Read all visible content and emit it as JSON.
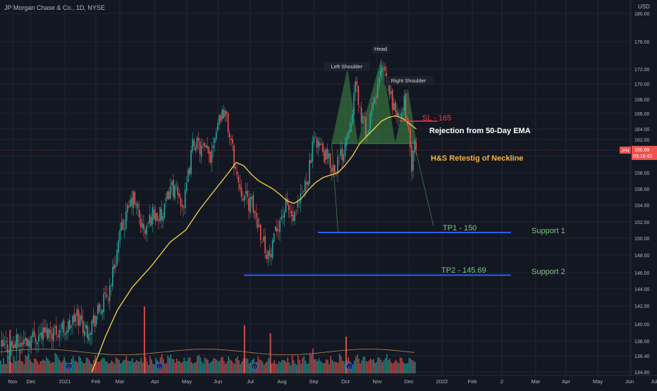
{
  "header": {
    "symbol_title": "JP Morgan Chase & Co., 1D, NYSE",
    "currency": "USD"
  },
  "colors": {
    "background": "#131722",
    "up_candle": "#26a69a",
    "down_candle": "#ef5350",
    "ema_line": "#f5d547",
    "neckline_fill": "#4caf50",
    "support_line": "#2962ff",
    "sl_line": "#f23645",
    "annotation_green": "#7cc47f",
    "annotation_orange": "#f5b63a"
  },
  "icons": [
    "dividend-icon"
  ],
  "chart_data": {
    "type": "candlestick",
    "y_axis": {
      "range": [
        134.5,
        181.2
      ],
      "ticks": [
        "134.80",
        "136.40",
        "138.00",
        "140.00",
        "142.00",
        "144.00",
        "146.00",
        "148.00",
        "150.00",
        "152.00",
        "154.00",
        "156.00",
        "158.00",
        "160.00",
        "162.00",
        "164.00",
        "166.00",
        "168.00",
        "170.00",
        "172.00",
        "176.00",
        "180.00"
      ]
    },
    "x_axis": {
      "labels": [
        "Nov",
        "Dec",
        "2021",
        "Feb",
        "Mar",
        "Apr",
        "May",
        "Jun",
        "Jul",
        "Aug",
        "Sep",
        "Oct",
        "Nov",
        "Dec",
        "2022",
        "Feb",
        "2",
        "Mar",
        "Apr",
        "May",
        "Jun",
        "Jul"
      ]
    },
    "last_price": {
      "ticker": "JPM",
      "price": 160.69,
      "countdown": "05:16:42"
    },
    "price_path": [
      {
        "date": "2020-11-02",
        "close": 137.2
      },
      {
        "date": "2020-11-20",
        "close": 137.8
      },
      {
        "date": "2020-12-04",
        "close": 138.6
      },
      {
        "date": "2020-12-18",
        "close": 139.2
      },
      {
        "date": "2021-01-04",
        "close": 139.6
      },
      {
        "date": "2021-01-13",
        "close": 141.0
      },
      {
        "date": "2021-01-22",
        "close": 139.2
      },
      {
        "date": "2021-02-05",
        "close": 141.5
      },
      {
        "date": "2021-02-15",
        "close": 143.5
      },
      {
        "date": "2021-02-22",
        "close": 147.0
      },
      {
        "date": "2021-03-01",
        "close": 150.5
      },
      {
        "date": "2021-03-12",
        "close": 155.0
      },
      {
        "date": "2021-03-22",
        "close": 150.5
      },
      {
        "date": "2021-03-29",
        "close": 153.0
      },
      {
        "date": "2021-04-08",
        "close": 152.5
      },
      {
        "date": "2021-04-15",
        "close": 156.5
      },
      {
        "date": "2021-04-28",
        "close": 154.0
      },
      {
        "date": "2021-05-07",
        "close": 162.0
      },
      {
        "date": "2021-05-13",
        "close": 161.0
      },
      {
        "date": "2021-05-24",
        "close": 160.0
      },
      {
        "date": "2021-06-01",
        "close": 165.5
      },
      {
        "date": "2021-06-07",
        "close": 166.5
      },
      {
        "date": "2021-06-11",
        "close": 163.0
      },
      {
        "date": "2021-06-18",
        "close": 157.5
      },
      {
        "date": "2021-06-25",
        "close": 155.0
      },
      {
        "date": "2021-07-02",
        "close": 154.0
      },
      {
        "date": "2021-07-09",
        "close": 151.5
      },
      {
        "date": "2021-07-15",
        "close": 149.0
      },
      {
        "date": "2021-07-20",
        "close": 147.5
      },
      {
        "date": "2021-07-28",
        "close": 152.0
      },
      {
        "date": "2021-08-05",
        "close": 154.0
      },
      {
        "date": "2021-08-12",
        "close": 152.0
      },
      {
        "date": "2021-08-20",
        "close": 155.0
      },
      {
        "date": "2021-08-27",
        "close": 158.5
      },
      {
        "date": "2021-09-02",
        "close": 162.5
      },
      {
        "date": "2021-09-10",
        "close": 160.0
      },
      {
        "date": "2021-09-20",
        "close": 158.5
      },
      {
        "date": "2021-09-28",
        "close": 160.5
      },
      {
        "date": "2021-10-05",
        "close": 165.0
      },
      {
        "date": "2021-10-11",
        "close": 170.0
      },
      {
        "date": "2021-10-15",
        "close": 166.0
      },
      {
        "date": "2021-10-22",
        "close": 163.0
      },
      {
        "date": "2021-10-29",
        "close": 168.0
      },
      {
        "date": "2021-11-05",
        "close": 172.0
      },
      {
        "date": "2021-11-10",
        "close": 170.0
      },
      {
        "date": "2021-11-16",
        "close": 167.0
      },
      {
        "date": "2021-11-22",
        "close": 165.0
      },
      {
        "date": "2021-11-26",
        "close": 168.0
      },
      {
        "date": "2021-11-30",
        "close": 163.5
      },
      {
        "date": "2021-12-03",
        "close": 158.5
      },
      {
        "date": "2021-12-06",
        "close": 161.0
      },
      {
        "date": "2021-12-08",
        "close": 160.69
      }
    ],
    "ema_50": [
      {
        "date": "2021-01-28",
        "value": 134.8
      },
      {
        "date": "2021-02-12",
        "value": 138.5
      },
      {
        "date": "2021-02-26",
        "value": 141.5
      },
      {
        "date": "2021-03-12",
        "value": 144.2
      },
      {
        "date": "2021-03-29",
        "value": 146.8
      },
      {
        "date": "2021-04-15",
        "value": 149.5
      },
      {
        "date": "2021-04-30",
        "value": 151.0
      },
      {
        "date": "2021-05-14",
        "value": 153.5
      },
      {
        "date": "2021-05-28",
        "value": 155.7
      },
      {
        "date": "2021-06-11",
        "value": 158.0
      },
      {
        "date": "2021-06-18",
        "value": 159.2
      },
      {
        "date": "2021-06-25",
        "value": 158.8
      },
      {
        "date": "2021-07-02",
        "value": 157.8
      },
      {
        "date": "2021-07-09",
        "value": 157.0
      },
      {
        "date": "2021-07-16",
        "value": 156.5
      },
      {
        "date": "2021-07-23",
        "value": 156.0
      },
      {
        "date": "2021-07-30",
        "value": 155.3
      },
      {
        "date": "2021-08-06",
        "value": 154.5
      },
      {
        "date": "2021-08-13",
        "value": 154.2
      },
      {
        "date": "2021-08-20",
        "value": 154.8
      },
      {
        "date": "2021-08-27",
        "value": 155.9
      },
      {
        "date": "2021-09-03",
        "value": 156.8
      },
      {
        "date": "2021-09-10",
        "value": 157.4
      },
      {
        "date": "2021-09-17",
        "value": 157.7
      },
      {
        "date": "2021-09-24",
        "value": 158.0
      },
      {
        "date": "2021-10-01",
        "value": 158.9
      },
      {
        "date": "2021-10-08",
        "value": 160.0
      },
      {
        "date": "2021-10-15",
        "value": 161.5
      },
      {
        "date": "2021-10-22",
        "value": 162.7
      },
      {
        "date": "2021-10-29",
        "value": 164.0
      },
      {
        "date": "2021-11-05",
        "value": 165.0
      },
      {
        "date": "2021-11-12",
        "value": 165.5
      },
      {
        "date": "2021-11-19",
        "value": 165.7
      },
      {
        "date": "2021-11-26",
        "value": 165.3
      },
      {
        "date": "2021-12-03",
        "value": 164.5
      },
      {
        "date": "2021-12-08",
        "value": 164.0
      }
    ],
    "volume_relative": [
      0.35,
      0.28,
      0.42,
      0.3,
      0.25,
      0.5,
      0.33,
      0.3,
      0.27,
      0.45,
      0.38,
      0.3,
      0.4,
      0.55,
      0.35,
      0.3,
      0.28,
      0.5,
      0.45,
      0.6,
      0.4,
      0.35,
      0.3,
      0.42,
      0.38,
      0.3,
      0.28,
      0.33,
      0.4,
      0.36,
      0.3,
      0.45,
      0.4,
      0.35,
      0.3,
      0.28,
      0.33,
      0.5,
      0.45,
      0.4,
      0.35,
      0.3,
      0.38,
      0.42,
      0.36,
      0.3,
      0.28,
      0.33,
      0.4,
      0.46,
      0.38,
      0.3,
      0.35,
      0.44,
      0.4,
      0.36,
      0.3,
      0.33,
      0.42,
      0.38,
      0.35,
      0.3,
      0.28,
      0.4,
      0.45,
      0.36,
      0.3,
      0.33,
      0.38,
      0.5,
      0.42,
      0.35,
      0.3,
      0.28,
      0.33,
      0.4,
      0.35,
      0.3,
      0.45,
      0.4,
      0.36,
      0.3,
      0.28,
      0.32,
      0.38,
      0.42,
      0.35,
      0.3,
      0.33,
      0.4,
      0.3,
      0.28,
      0.35,
      0.3,
      0.32,
      0.38
    ],
    "volume_spikes": [
      {
        "date": "2020-11-10",
        "relative": 0.65
      },
      {
        "date": "2021-03-22",
        "relative": 1.0
      },
      {
        "date": "2021-06-25",
        "relative": 0.72
      },
      {
        "date": "2021-07-20",
        "relative": 0.6
      },
      {
        "date": "2021-10-01",
        "relative": 0.55
      }
    ],
    "dividend_markers": [
      "2021-01-05",
      "2021-04-05",
      "2021-07-05",
      "2021-10-05"
    ],
    "pattern": {
      "name": "Head and Shoulders",
      "neckline": 161.5,
      "left_shoulder": {
        "date": "2021-10-03",
        "price": 172.0
      },
      "head": {
        "date": "2021-11-05",
        "price": 173.5
      },
      "right_shoulder": {
        "date": "2021-11-30",
        "price": 169.3
      }
    },
    "projection_lines": [
      {
        "date": "2021-12-24",
        "price": 151.5
      }
    ],
    "levels": {
      "stop_loss": {
        "price": 165,
        "start": "2021-11-22",
        "end": "2021-12-28"
      },
      "support1": {
        "price": 150.7,
        "start": "2021-09-05",
        "end": "2022-02-18"
      },
      "support2": {
        "price": 145.69,
        "start": "2021-06-25",
        "end": "2022-02-18"
      }
    },
    "annotations": {
      "left_shoulder": "Left Shoulder",
      "head": "Head",
      "right_shoulder": "Right Shoulder",
      "sl": "SL - 165",
      "rejection": "Rejection from 50-Day EMA",
      "retest": "H&S Retestig of Neckline",
      "tp1": "TP1 - 150",
      "tp2": "TP2 - 145.69",
      "support1": "Support 1",
      "support2": "Support 2"
    }
  }
}
